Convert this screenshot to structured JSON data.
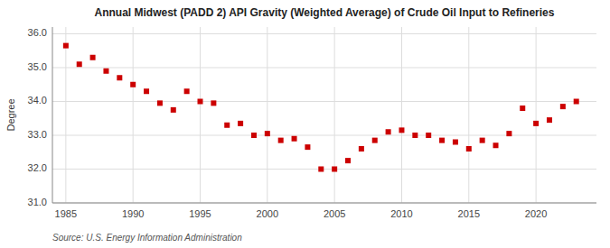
{
  "chart_data": {
    "type": "scatter",
    "title": "Annual Midwest (PADD 2) API Gravity (Weighted Average) of Crude Oil Input to Refineries",
    "y_label": "Degree",
    "annotations": [
      "Source: U.S. Energy Information Administration"
    ],
    "x": [
      1985,
      1986,
      1987,
      1988,
      1989,
      1990,
      1991,
      1992,
      1993,
      1994,
      1995,
      1996,
      1997,
      1998,
      1999,
      2000,
      2001,
      2002,
      2003,
      2004,
      2005,
      2006,
      2007,
      2008,
      2009,
      2010,
      2011,
      2012,
      2013,
      2014,
      2015,
      2016,
      2017,
      2018,
      2019,
      2020,
      2021,
      2022,
      2023
    ],
    "values": [
      35.65,
      35.1,
      35.3,
      34.9,
      34.7,
      34.5,
      34.3,
      33.95,
      33.75,
      34.3,
      34.0,
      33.95,
      33.3,
      33.35,
      33.0,
      33.05,
      32.85,
      32.9,
      32.65,
      32.0,
      32.0,
      32.25,
      32.6,
      32.85,
      33.1,
      33.15,
      33.0,
      33.0,
      32.85,
      32.8,
      32.6,
      32.85,
      32.7,
      33.05,
      33.8,
      33.35,
      33.45,
      33.85,
      34.0
    ],
    "color": "#cc0000",
    "marker": "square",
    "xlim": [
      1984.0,
      2024.5
    ],
    "ylim": [
      31.0,
      36.2
    ],
    "xticks": [
      1985,
      1990,
      1995,
      2000,
      2005,
      2010,
      2015,
      2020
    ],
    "yticks": [
      {
        "value": 31.0,
        "label": "31.0"
      },
      {
        "value": 32.0,
        "label": "32.0"
      },
      {
        "value": 33.0,
        "label": "33.0"
      },
      {
        "value": 34.0,
        "label": "34.0"
      },
      {
        "value": 35.0,
        "label": "35.0"
      },
      {
        "value": 36.0,
        "label": "36.0"
      }
    ],
    "grid": true
  }
}
